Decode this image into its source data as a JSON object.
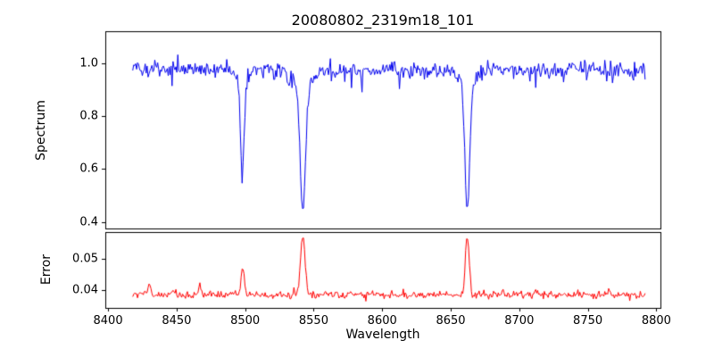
{
  "title": "20080802_2319m18_101",
  "chart_data": {
    "type": "line",
    "title": "20080802_2319m18_101",
    "xlabel": "Wavelength",
    "grid": false,
    "legend": "none",
    "xlim": [
      8398,
      8803
    ],
    "x_data_range": [
      8418,
      8792
    ],
    "x_ticks": [
      {
        "v": 8400,
        "label": "8400"
      },
      {
        "v": 8450,
        "label": "8450"
      },
      {
        "v": 8500,
        "label": "8500"
      },
      {
        "v": 8550,
        "label": "8550"
      },
      {
        "v": 8600,
        "label": "8600"
      },
      {
        "v": 8650,
        "label": "8650"
      },
      {
        "v": 8700,
        "label": "8700"
      },
      {
        "v": 8750,
        "label": "8750"
      },
      {
        "v": 8800,
        "label": "8800"
      }
    ],
    "seed": 20080802,
    "subplots": [
      {
        "name": "spectrum",
        "ylabel": "Spectrum",
        "ylim": [
          0.375,
          1.12
        ],
        "y_ticks": [
          {
            "v": 0.4,
            "label": "0.4"
          },
          {
            "v": 0.6,
            "label": "0.6"
          },
          {
            "v": 0.8,
            "label": "0.8"
          },
          {
            "v": 1.0,
            "label": "1.0"
          }
        ],
        "color": "#0000ee",
        "series": {
          "description": "Noisy normalized stellar spectrum near 1.0 with three deep Ca II triplet absorption lines",
          "continuum": 0.975,
          "noise_sigma": 0.016,
          "dip_prob": 0.06,
          "dip_min": 0.02,
          "dip_max": 0.07,
          "step": 0.7,
          "absorption_lines": [
            {
              "center": 8498.0,
              "min_flux": 0.61,
              "depth": 0.33,
              "sigma": 1.4,
              "wing_depth": 0.04,
              "wing_sigma": 4.0
            },
            {
              "center": 8542.1,
              "min_flux": 0.43,
              "depth": 0.48,
              "sigma": 1.8,
              "wing_depth": 0.07,
              "wing_sigma": 7.0
            },
            {
              "center": 8662.1,
              "min_flux": 0.45,
              "depth": 0.46,
              "sigma": 1.7,
              "wing_depth": 0.065,
              "wing_sigma": 5.5
            }
          ]
        }
      },
      {
        "name": "error",
        "ylabel": "Error",
        "ylim": [
          0.0342,
          0.0585
        ],
        "y_ticks": [
          {
            "v": 0.04,
            "label": "0.04"
          },
          {
            "v": 0.05,
            "label": "0.05"
          }
        ],
        "color": "#ff0000",
        "series": {
          "description": "Error spectrum: flat baseline near 0.038 with peaks at the absorption-line wavelengths",
          "baseline": 0.0383,
          "noise_sigma": 0.0006,
          "spike_prob": 0.1,
          "spike_scale": 0.0015,
          "step": 0.7,
          "peaks": [
            {
              "center": 8430.0,
              "amp": 0.0032,
              "sigma": 1.3
            },
            {
              "center": 8447.0,
              "amp": 0.0012,
              "sigma": 1.0
            },
            {
              "center": 8467.0,
              "amp": 0.0028,
              "sigma": 1.1
            },
            {
              "center": 8489.0,
              "amp": 0.001,
              "sigma": 1.0
            },
            {
              "center": 8498.3,
              "amp": 0.0092,
              "sigma": 1.2
            },
            {
              "center": 8542.1,
              "amp": 0.019,
              "sigma": 1.6
            },
            {
              "center": 8583.0,
              "amp": 0.0009,
              "sigma": 1.0
            },
            {
              "center": 8662.1,
              "amp": 0.0185,
              "sigma": 1.4
            },
            {
              "center": 8688.0,
              "amp": 0.0014,
              "sigma": 1.2
            },
            {
              "center": 8713.0,
              "amp": 0.0012,
              "sigma": 1.0
            },
            {
              "center": 8764.0,
              "amp": 0.001,
              "sigma": 1.0
            }
          ]
        }
      }
    ]
  }
}
